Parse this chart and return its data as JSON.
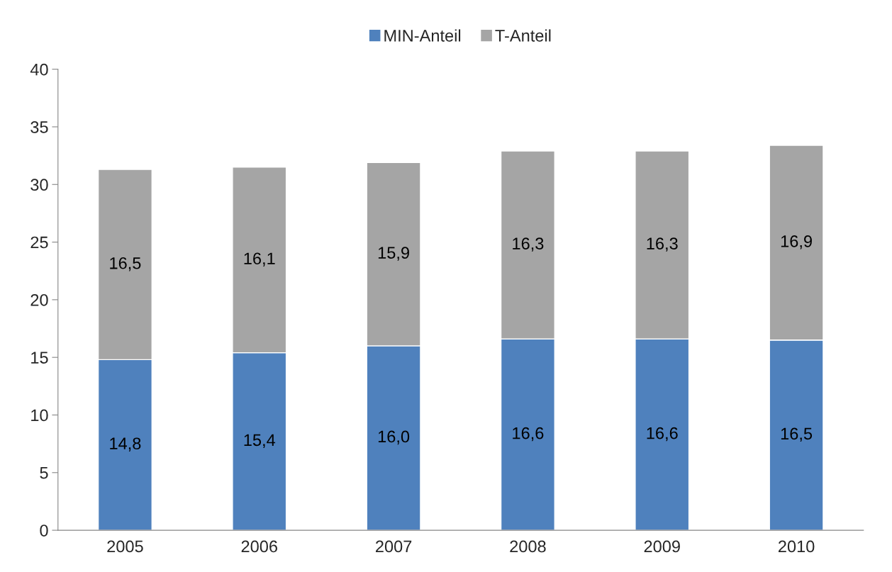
{
  "chart_data": {
    "type": "bar",
    "stacked": true,
    "categories": [
      "2005",
      "2006",
      "2007",
      "2008",
      "2009",
      "2010"
    ],
    "series": [
      {
        "name": "MIN-Anteil",
        "color": "#4f81bd",
        "values": [
          14.8,
          15.4,
          16.0,
          16.6,
          16.6,
          16.5
        ],
        "value_labels": [
          "14,8",
          "15,4",
          "16,0",
          "16,6",
          "16,6",
          "16,5"
        ]
      },
      {
        "name": "T-Anteil",
        "color": "#a5a5a5",
        "values": [
          16.5,
          16.1,
          15.9,
          16.3,
          16.3,
          16.9
        ],
        "value_labels": [
          "16,5",
          "16,1",
          "15,9",
          "16,3",
          "16,3",
          "16,9"
        ]
      }
    ],
    "ylim": [
      0,
      40
    ],
    "yticks": [
      0,
      5,
      10,
      15,
      20,
      25,
      30,
      35,
      40
    ],
    "grid": false,
    "legend": "top"
  }
}
